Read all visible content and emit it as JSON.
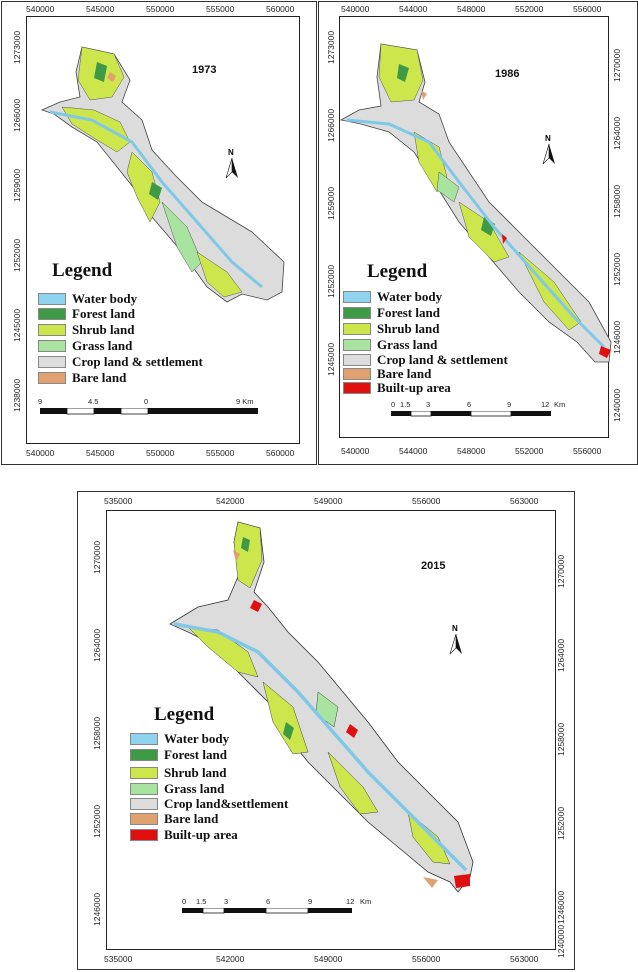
{
  "maps": [
    {
      "year": "1973",
      "top_ticks": [
        "540000",
        "545000",
        "550000",
        "555000",
        "560000"
      ],
      "bottom_ticks": [
        "540000",
        "545000",
        "550000",
        "555000",
        "560000"
      ],
      "left_ticks": [
        "1273000",
        "1266000",
        "1259000",
        "1252000",
        "1245000",
        "1238000"
      ],
      "right_ticks": [],
      "legend_title": "Legend",
      "legend": [
        {
          "label": "Water body",
          "color": "#8fd3ee"
        },
        {
          "label": "Forest land",
          "color": "#3f9a45"
        },
        {
          "label": "Shrub land",
          "color": "#cde64c"
        },
        {
          "label": "Grass land",
          "color": "#a8e3a0"
        },
        {
          "label": "Crop land & settlement",
          "color": "#dddddd"
        },
        {
          "label": "Bare land",
          "color": "#e0a070"
        }
      ],
      "scale_labels": [
        "9",
        "4.5",
        "0",
        "9 Km"
      ],
      "north_label": "N"
    },
    {
      "year": "1986",
      "top_ticks": [
        "540000",
        "544000",
        "548000",
        "552000",
        "556000"
      ],
      "bottom_ticks": [
        "540000",
        "544000",
        "548000",
        "552000",
        "556000"
      ],
      "left_ticks": [
        "1273000",
        "1266000",
        "1259000",
        "1252000",
        "1245000"
      ],
      "right_ticks": [
        "1270000",
        "1264000",
        "1258000",
        "1252000",
        "1246000",
        "1240000"
      ],
      "legend_title": "Legend",
      "legend": [
        {
          "label": "Water body",
          "color": "#8fd3ee"
        },
        {
          "label": "Forest land",
          "color": "#3f9a45"
        },
        {
          "label": "Shrub land",
          "color": "#cde64c"
        },
        {
          "label": "Grass land",
          "color": "#a8e3a0"
        },
        {
          "label": "Crop land & settlement",
          "color": "#dddddd"
        },
        {
          "label": "Bare land",
          "color": "#e0a070"
        },
        {
          "label": "Built-up area",
          "color": "#e01010"
        }
      ],
      "scale_labels": [
        "0",
        "1.5",
        "3",
        "6",
        "9",
        "12",
        "Km"
      ],
      "north_label": "N"
    },
    {
      "year": "2015",
      "top_ticks": [
        "535000",
        "542000",
        "549000",
        "556000",
        "563000"
      ],
      "bottom_ticks": [
        "535000",
        "542000",
        "549000",
        "556000",
        "563000"
      ],
      "left_ticks": [
        "1270000",
        "1264000",
        "1258000",
        "1252000",
        "1246000"
      ],
      "right_ticks": [
        "1270000",
        "1264000",
        "1258000",
        "1252000",
        "1246000",
        "1240000"
      ],
      "legend_title": "Legend",
      "legend": [
        {
          "label": "Water body",
          "color": "#8fd3ee"
        },
        {
          "label": "Forest land",
          "color": "#3f9a45"
        },
        {
          "label": "Shrub land",
          "color": "#cde64c"
        },
        {
          "label": "Grass land",
          "color": "#a8e3a0"
        },
        {
          "label": "Crop land&settlement",
          "color": "#dddddd"
        },
        {
          "label": "Bare land",
          "color": "#e0a070"
        },
        {
          "label": "Built-up area",
          "color": "#e01010"
        }
      ],
      "scale_labels": [
        "0",
        "1.5",
        "3",
        "6",
        "9",
        "12",
        "Km"
      ],
      "north_label": "N"
    }
  ]
}
